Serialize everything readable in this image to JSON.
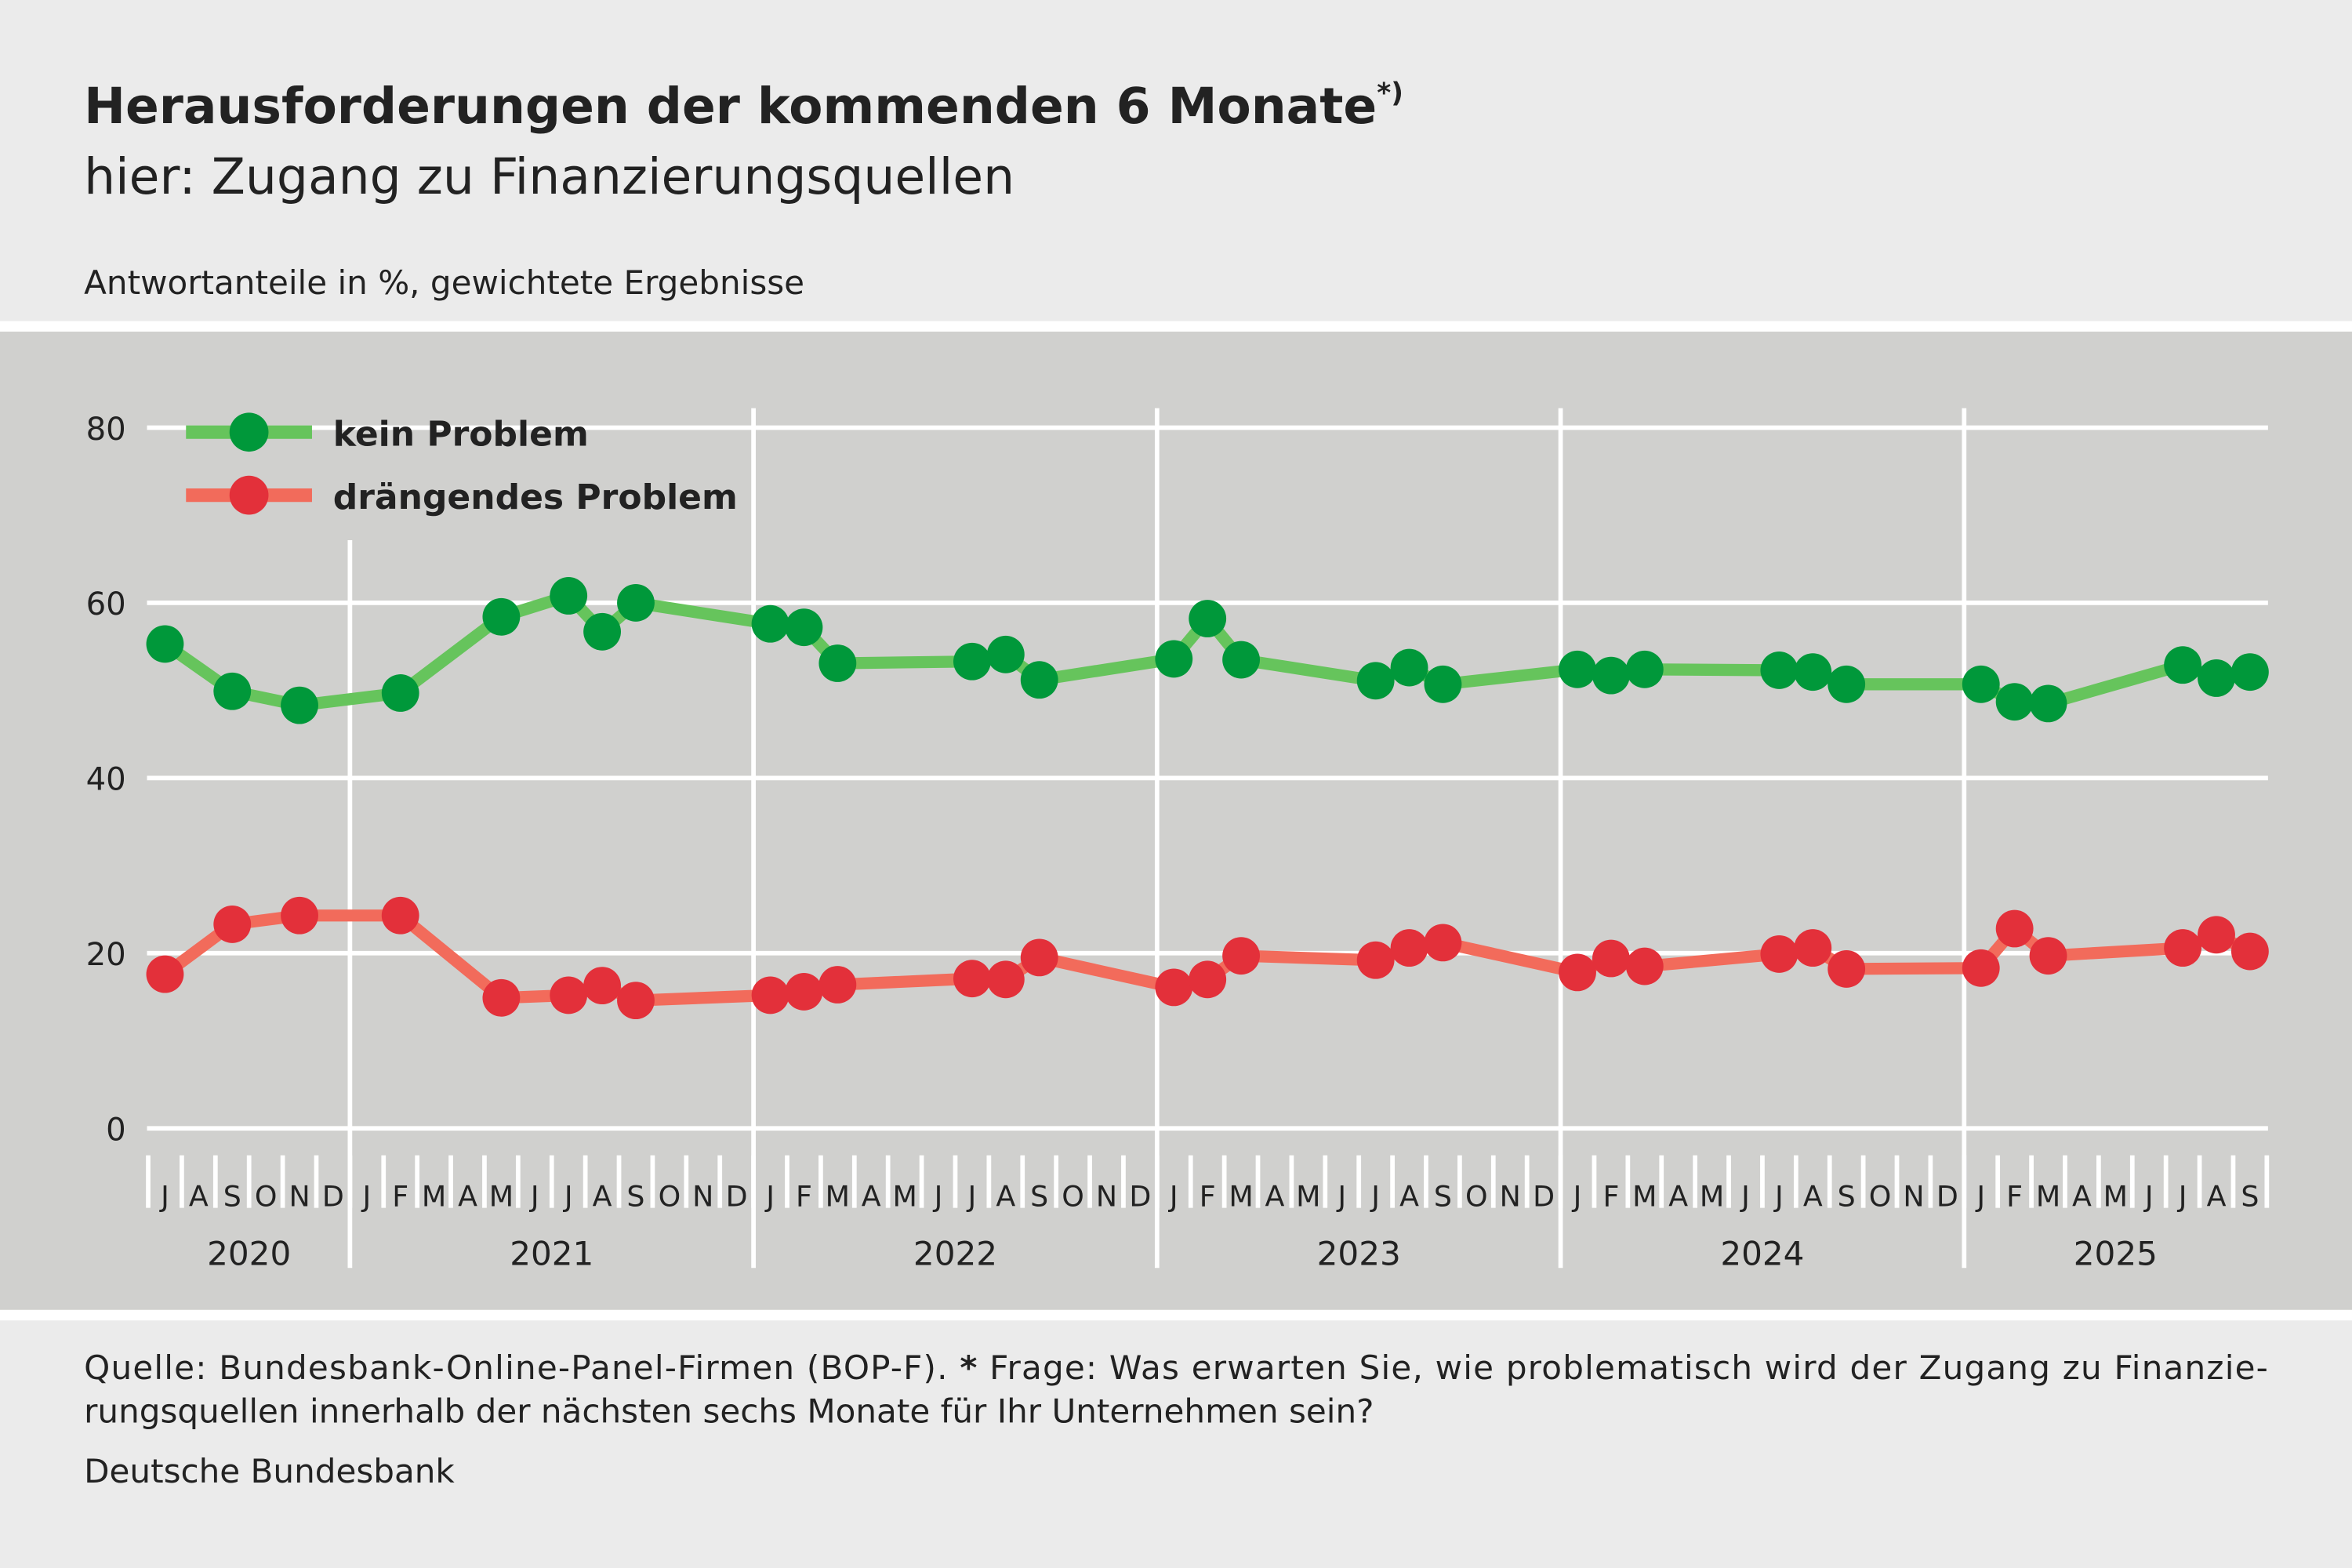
{
  "title": "Herausforderungen der kommenden 6 Monate",
  "title_superscript": "*)",
  "subtitle": "hier: Zugang zu Finanzierungsquellen",
  "unit_note": "Antwortanteile in %, gewichtete Ergebnisse",
  "footer": {
    "source_line1_a": "Quelle: Bundesbank-Online-Panel-Firmen (BOP-F).",
    "source_line1_star": "*",
    "source_line1_b": "Frage: Was erwarten Sie, wie problematisch wird der Zugang zu Finanzie-",
    "source_line2": "rungsquellen innerhalb der nächsten sechs Monate für Ihr Unternehmen sein?",
    "publisher": "Deutsche Bundesbank"
  },
  "chart_data": {
    "type": "line",
    "ylabel": "",
    "xlabel": "",
    "ylim": [
      0,
      80
    ],
    "yticks": [
      0,
      20,
      40,
      60,
      80
    ],
    "grid": true,
    "legend_position": "top-left",
    "x_range": [
      "2020-07",
      "2025-09"
    ],
    "month_letters": [
      "J",
      "F",
      "M",
      "A",
      "M",
      "J",
      "J",
      "A",
      "S",
      "O",
      "N",
      "D"
    ],
    "years": [
      "2020",
      "2021",
      "2022",
      "2023",
      "2024",
      "2025"
    ],
    "x": [
      "2020-07",
      "2020-09",
      "2020-11",
      "2021-02",
      "2021-05",
      "2021-07",
      "2021-08",
      "2021-09",
      "2022-01",
      "2022-02",
      "2022-03",
      "2022-07",
      "2022-08",
      "2022-09",
      "2023-01",
      "2023-02",
      "2023-03",
      "2023-07",
      "2023-08",
      "2023-09",
      "2024-01",
      "2024-02",
      "2024-03",
      "2024-07",
      "2024-08",
      "2024-09",
      "2025-01",
      "2025-02",
      "2025-03",
      "2025-07",
      "2025-08",
      "2025-09"
    ],
    "series": [
      {
        "name": "kein Problem",
        "color": "#66c45c",
        "marker_color": "#00983a",
        "values": [
          55.3,
          49.9,
          48.3,
          49.7,
          58.4,
          60.8,
          56.7,
          60.0,
          57.6,
          57.2,
          53.1,
          53.3,
          54.1,
          51.2,
          53.6,
          58.2,
          53.5,
          51.1,
          52.6,
          50.7,
          52.4,
          51.7,
          52.4,
          52.3,
          52.1,
          50.7,
          50.7,
          48.7,
          48.5,
          52.9,
          51.4,
          52.1
        ]
      },
      {
        "name": "drängendes Problem",
        "color": "#f26b5b",
        "marker_color": "#e3303a",
        "values": [
          17.6,
          23.3,
          24.3,
          24.3,
          14.9,
          15.2,
          16.3,
          14.6,
          15.2,
          15.6,
          16.4,
          17.1,
          17.0,
          19.5,
          16.1,
          17.0,
          19.7,
          19.2,
          20.6,
          21.2,
          17.8,
          19.4,
          18.5,
          19.9,
          20.6,
          18.2,
          18.3,
          22.8,
          19.7,
          20.6,
          22.1,
          20.2
        ]
      }
    ]
  }
}
